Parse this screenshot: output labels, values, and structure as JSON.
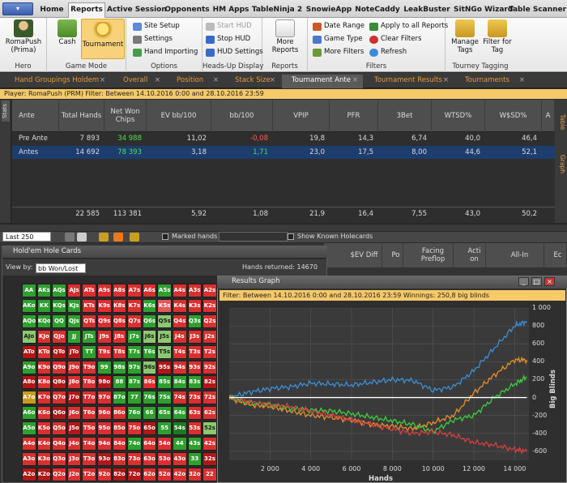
{
  "ribbon": {
    "app_button": "▾",
    "tabs": [
      "Home",
      "Reports",
      "Active Session",
      "Opponents",
      "HM Apps",
      "TableNinja 2",
      "SnowieApp",
      "NoteCaddy",
      "LeakBuster",
      "SitNGo Wizard",
      "Table Scanner"
    ],
    "active_tab": "Reports",
    "groups": {
      "hero": {
        "label": "Hero",
        "button": "RomaPush (Prima)"
      },
      "game_mode": {
        "label": "Game Mode",
        "cash": "Cash",
        "tournament": "Tournament"
      },
      "options": {
        "label": "Options",
        "site_setup": "Site Setup",
        "settings": "Settings",
        "hand_importing": "Hand Importing"
      },
      "hud": {
        "label": "Heads-Up Display",
        "start_hud": "Start HUD",
        "stop_hud": "Stop HUD",
        "hud_settings": "HUD Settings"
      },
      "reports": {
        "label": "Reports",
        "more_reports": "More Reports"
      },
      "filters": {
        "label": "Filters",
        "date_range": "Date Range",
        "game_type": "Game Type",
        "more_filters": "More Filters",
        "apply_all": "Apply to all Reports",
        "clear_filters": "Clear Filters",
        "refresh": "Refresh"
      },
      "tourney": {
        "label": "Tourney Tagging",
        "manage_tags": "Manage Tags",
        "filter_tag": "Filter for Tag"
      }
    }
  },
  "doc_tabs": [
    "Hand Groupings Holdem",
    "Overall",
    "Position",
    "Stack Size",
    "Tournament Ante",
    "Tournament Results",
    "Tournaments"
  ],
  "active_doc_tab": "Tournament Ante",
  "filter_bar": "Player:  RomaPush (PRM)   Filter:  Between 14.10.2016 0:00 and 28.10.2016 23:59",
  "stats": {
    "side_tab": "Stats",
    "right_tabs": [
      "Table",
      "Graph"
    ],
    "columns": [
      "Ante",
      "Total Hands",
      "Net Won Chips",
      "EV bb/100",
      "bb/100",
      "VPIP",
      "PFR",
      "3Bet",
      "WTSD%",
      "W$SD%",
      "A"
    ],
    "rows": [
      [
        "Pre Ante",
        "7 893",
        "34 988",
        "11,02",
        "-0,08",
        "19,8",
        "14,3",
        "6,74",
        "40,0",
        "46,4"
      ],
      [
        "Antes",
        "14 692",
        "78 393",
        "3,18",
        "1,71",
        "23,0",
        "17,5",
        "8,00",
        "44,6",
        "52,1"
      ]
    ],
    "totals": [
      "",
      "22 585",
      "113 381",
      "5,92",
      "1,08",
      "21,9",
      "16,4",
      "7,55",
      "43,0",
      "50,2"
    ]
  },
  "toolbar": {
    "last_select": "Last 250",
    "marked_hands": "Marked hands",
    "show_known": "Show Known Holecards"
  },
  "lower_columns": [
    "$EV Diff",
    "Po",
    "Facing Preflop",
    "Acti on",
    "All-In",
    "Ec"
  ],
  "hole_cards": {
    "title": "Hold'em Hole Cards",
    "view_by_label": "View by:",
    "view_by_value": "bb Won/Lost",
    "hands_returned": "Hands returned:  14670",
    "ranks": [
      "A",
      "K",
      "Q",
      "J",
      "T",
      "9",
      "8",
      "7",
      "6",
      "5",
      "4",
      "3",
      "2"
    ],
    "colors": {
      "dark_red": "#b01818",
      "red": "#d93030",
      "light_red": "#e05a5a",
      "gold": "#c89a20",
      "light_green": "#8cc870",
      "green": "#2fa02f",
      "dark_green": "#1f7a1f"
    },
    "cell_colors": [
      "gggrrrrrrgrrr",
      "ggggrrrrglrrr",
      "ggggrrrrgLrgr",
      "LrrggrrgLLrrr",
      "RrRRgrrggLrrr",
      "grrrrgggLRrrr",
      "RrRrrRggrgggR",
      "YrrRrrggggrrr",
      "grRrrrrggggrr",
      "grrRrrrrRgGrL",
      "rrrrrrrgrrggr",
      "rrrrrRrrrrrgR",
      "RRrrrrRRrrrrr"
    ]
  },
  "results_graph": {
    "title": "Results Graph",
    "filter": "Filter:  Between 14.10.2016 0:00 and 28.10.2016 23:59   Winnings:  250,8 big blinds",
    "window_buttons": [
      "_",
      "□",
      "×"
    ],
    "colors": {
      "blue": "#3a8fd8",
      "orange": "#e8902a",
      "green": "#3ccf3c",
      "red": "#d84040",
      "white": "#ffffff"
    }
  },
  "chart_data": {
    "type": "line",
    "title": "",
    "xlabel": "Hands",
    "ylabel": "Big Blinds",
    "xlim": [
      0,
      14700
    ],
    "ylim": [
      -700,
      1000
    ],
    "x_ticks": [
      "2 000",
      "4 000",
      "6 000",
      "8 000",
      "10 000",
      "12 000",
      "14 000"
    ],
    "y_ticks": [
      "1 000",
      "800",
      "600",
      "400",
      "200",
      "0",
      "-200",
      "-400",
      "-600"
    ],
    "grid": true,
    "series": [
      {
        "color": "blue",
        "x": [
          0,
          1000,
          2000,
          3000,
          4000,
          5000,
          6000,
          7000,
          8000,
          9000,
          10000,
          11000,
          12000,
          13000,
          14000,
          14600
        ],
        "y": [
          0,
          60,
          100,
          120,
          160,
          150,
          140,
          170,
          200,
          190,
          80,
          120,
          300,
          550,
          800,
          850
        ]
      },
      {
        "color": "orange",
        "x": [
          0,
          1000,
          2000,
          3000,
          4000,
          5000,
          6000,
          7000,
          8000,
          9000,
          10000,
          11000,
          12000,
          13000,
          14000,
          14600
        ],
        "y": [
          0,
          -80,
          -100,
          -150,
          -200,
          -220,
          -250,
          -300,
          -320,
          -350,
          -280,
          -200,
          50,
          250,
          420,
          420
        ]
      },
      {
        "color": "green",
        "x": [
          0,
          1000,
          2000,
          3000,
          4000,
          5000,
          6000,
          7000,
          8000,
          9000,
          10000,
          11000,
          12000,
          13000,
          14000,
          14600
        ],
        "y": [
          0,
          -60,
          -80,
          -120,
          -140,
          -150,
          -180,
          -220,
          -260,
          -300,
          -380,
          -250,
          -200,
          0,
          150,
          230
        ]
      },
      {
        "color": "red",
        "x": [
          0,
          1000,
          2000,
          3000,
          4000,
          5000,
          6000,
          7000,
          8000,
          9000,
          10000,
          11000,
          12000,
          13000,
          14000,
          14600
        ],
        "y": [
          0,
          -50,
          -80,
          -100,
          -150,
          -200,
          -250,
          -300,
          -350,
          -400,
          -380,
          -420,
          -500,
          -530,
          -580,
          -600
        ]
      },
      {
        "color": "white",
        "x": [
          0,
          14600
        ],
        "y": [
          0,
          0
        ]
      }
    ]
  }
}
